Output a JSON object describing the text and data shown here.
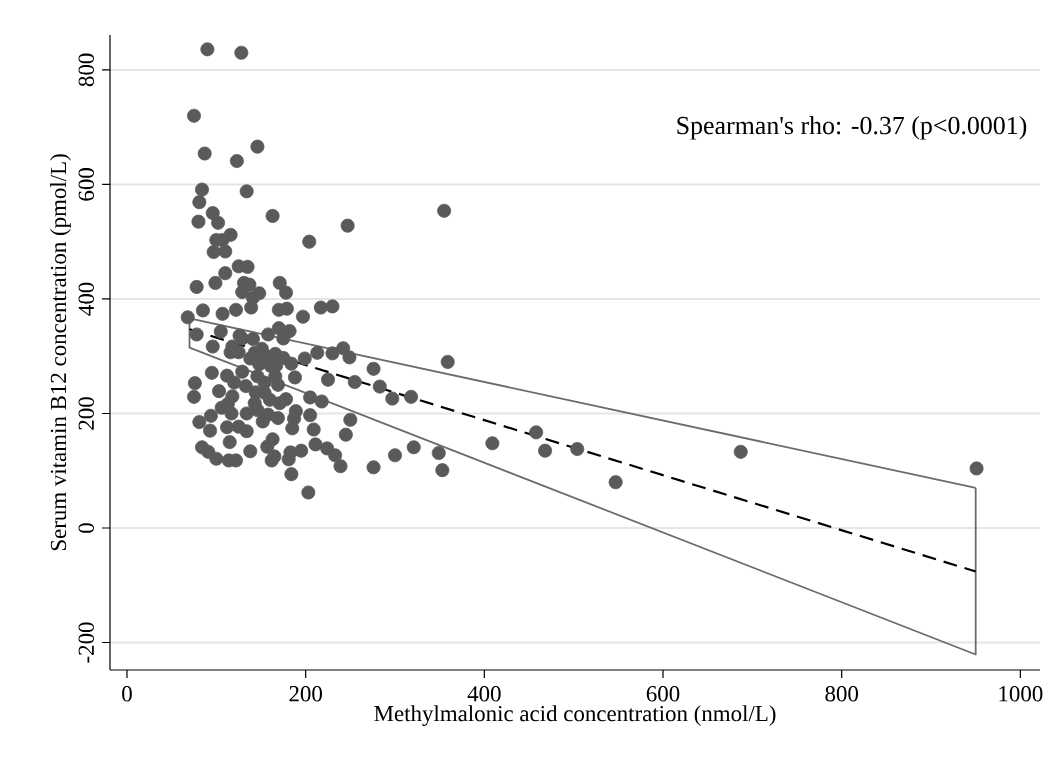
{
  "chart_data": {
    "type": "scatter",
    "xlabel": "Methylmalonic acid concentration (nmol/L)",
    "ylabel": "Serum vitamin B12 concentration (pmol/L)",
    "annotations": [
      "Spearman's rho: -0.37 (p<0.0001)"
    ],
    "xlim": [
      -19,
      1022
    ],
    "ylim": [
      -248,
      861
    ],
    "xticks": [
      0,
      200,
      400,
      600,
      800,
      1000
    ],
    "yticks": [
      -200,
      0,
      200,
      400,
      600,
      800
    ],
    "grid": "y",
    "series": [
      {
        "marker": "circle",
        "color": "#5a5a5a",
        "x": [
          90,
          128,
          75,
          146,
          87,
          123,
          84,
          134,
          81,
          96,
          80,
          102,
          163,
          355,
          247,
          204,
          116,
          107,
          100,
          97,
          110,
          125,
          135,
          110,
          78,
          99,
          131,
          137,
          171,
          178,
          148,
          129,
          141,
          139,
          85,
          107,
          122,
          170,
          179,
          197,
          217,
          230,
          68,
          170,
          182,
          78,
          105,
          126,
          141,
          158,
          175,
          242,
          96,
          118,
          125,
          213,
          230,
          249,
          199,
          359,
          276,
          138,
          148,
          166,
          175,
          184,
          76,
          75,
          95,
          112,
          120,
          103,
          118,
          129,
          146,
          154,
          144,
          161,
          166,
          169,
          188,
          225,
          255,
          283,
          297,
          318,
          106,
          117,
          134,
          146,
          158,
          169,
          178,
          189,
          205,
          205,
          218,
          81,
          94,
          113,
          93,
          112,
          115,
          134,
          152,
          163,
          185,
          187,
          209,
          250,
          245,
          84,
          91,
          100,
          114,
          122,
          138,
          157,
          165,
          162,
          181,
          183,
          195,
          211,
          224,
          233,
          239,
          184,
          203,
          276,
          300,
          321,
          349,
          353,
          409,
          458,
          468,
          504,
          547,
          687,
          951,
          129,
          155,
          167,
          143,
          151,
          116,
          133,
          160,
          171,
          143,
          154,
          125
        ],
        "values": [
          836,
          830,
          720,
          666,
          654,
          641,
          591,
          588,
          569,
          550,
          535,
          533,
          545,
          554,
          528,
          500,
          512,
          503,
          503,
          482,
          483,
          457,
          456,
          445,
          421,
          428,
          428,
          425,
          428,
          411,
          410,
          412,
          402,
          385,
          380,
          374,
          381,
          381,
          383,
          369,
          385,
          387,
          368,
          349,
          344,
          338,
          343,
          336,
          330,
          338,
          331,
          314,
          317,
          317,
          307,
          306,
          305,
          298,
          296,
          290,
          278,
          296,
          286,
          304,
          297,
          287,
          253,
          229,
          271,
          266,
          254,
          239,
          230,
          273,
          265,
          254,
          237,
          283,
          265,
          250,
          263,
          259,
          255,
          247,
          226,
          229,
          210,
          200,
          200,
          206,
          198,
          192,
          225,
          204,
          197,
          228,
          221,
          185,
          196,
          217,
          170,
          176,
          150,
          169,
          186,
          155,
          174,
          191,
          172,
          189,
          163,
          141,
          133,
          121,
          118,
          118,
          134,
          142,
          125,
          118,
          120,
          132,
          135,
          146,
          139,
          127,
          108,
          94,
          62,
          106,
          127,
          141,
          131,
          101,
          148,
          167,
          135,
          138,
          80,
          133,
          104,
          331,
          301,
          284,
          306,
          313,
          307,
          248,
          224,
          218,
          218,
          236,
          177
        ]
      },
      {
        "type": "line",
        "marker": "none",
        "line_style": "solid",
        "color": "#6b6b6b",
        "x": [
          70,
          950
        ],
        "values": [
          366,
          70
        ]
      },
      {
        "type": "line",
        "marker": "none",
        "line_style": "solid",
        "color": "#6b6b6b",
        "x": [
          70,
          70,
          950,
          950
        ],
        "values": [
          366,
          315,
          -221,
          70
        ]
      },
      {
        "type": "line",
        "marker": "none",
        "line_style": "dashed",
        "color": "#000000",
        "x": [
          70,
          950
        ],
        "values": [
          347,
          -76
        ]
      }
    ]
  }
}
